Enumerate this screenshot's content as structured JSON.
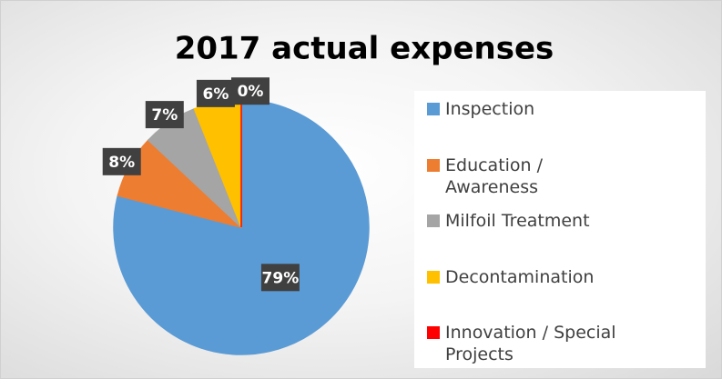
{
  "chart_data": {
    "type": "pie",
    "title": "2017 actual expenses",
    "categories": [
      "Inspection",
      "Education / Awareness",
      "Milfoil Treatment",
      "Decontamination",
      "Innovation / Special Projects"
    ],
    "values": [
      79,
      8,
      7,
      6,
      0
    ],
    "value_labels": [
      "79%",
      "8%",
      "7%",
      "6%",
      "0%"
    ],
    "colors": [
      "#5b9bd5",
      "#ed7d31",
      "#a5a5a5",
      "#ffc000",
      "#ff0000"
    ],
    "legend": "right"
  }
}
